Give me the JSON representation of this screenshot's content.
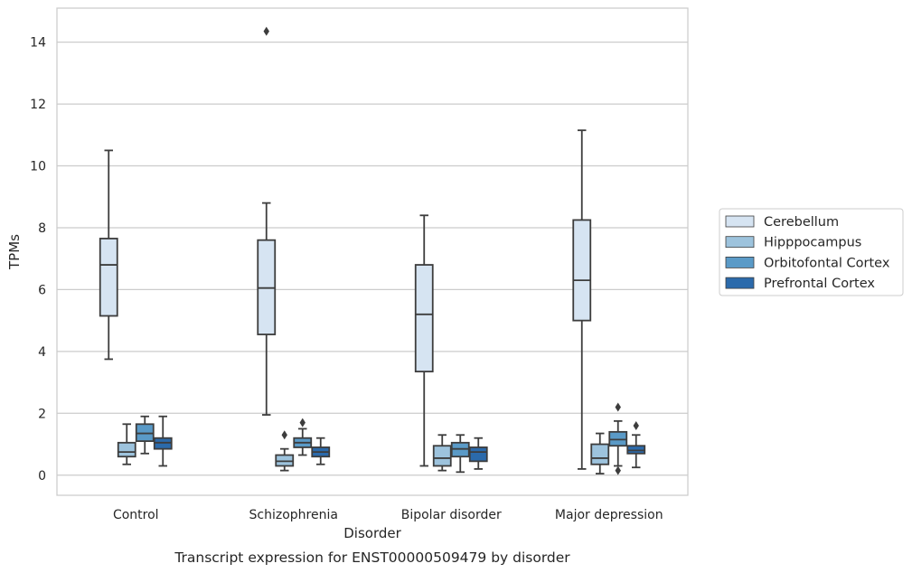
{
  "chart_data": {
    "type": "box",
    "title": "",
    "xlabel": "Disorder",
    "ylabel": "TPMs",
    "caption": "Transcript expression for ENST00000509479 by disorder",
    "categories": [
      "Control",
      "Schizophrenia",
      "Bipolar disorder",
      "Major depression"
    ],
    "yticks": [
      0,
      2,
      4,
      6,
      8,
      10,
      12,
      14
    ],
    "ylim": [
      -0.65,
      15.1
    ],
    "grid": true,
    "legend_position": "right",
    "series": [
      {
        "name": "Cerebellum",
        "color": "#d6e4f2",
        "boxes": [
          {
            "whislo": 3.75,
            "q1": 5.15,
            "med": 6.8,
            "q3": 7.65,
            "whishi": 10.5,
            "fliers": []
          },
          {
            "whislo": 1.95,
            "q1": 4.55,
            "med": 6.05,
            "q3": 7.6,
            "whishi": 8.8,
            "fliers": [
              14.35
            ]
          },
          {
            "whislo": 0.3,
            "q1": 3.35,
            "med": 5.2,
            "q3": 6.8,
            "whishi": 8.4,
            "fliers": []
          },
          {
            "whislo": 0.2,
            "q1": 5.0,
            "med": 6.3,
            "q3": 8.25,
            "whishi": 11.15,
            "fliers": []
          }
        ]
      },
      {
        "name": "Hipppocampus",
        "color": "#9dc3dd",
        "boxes": [
          {
            "whislo": 0.35,
            "q1": 0.6,
            "med": 0.75,
            "q3": 1.05,
            "whishi": 1.65,
            "fliers": []
          },
          {
            "whislo": 0.15,
            "q1": 0.3,
            "med": 0.45,
            "q3": 0.65,
            "whishi": 0.85,
            "fliers": [
              1.3
            ]
          },
          {
            "whislo": 0.15,
            "q1": 0.3,
            "med": 0.55,
            "q3": 0.95,
            "whishi": 1.3,
            "fliers": []
          },
          {
            "whislo": 0.05,
            "q1": 0.35,
            "med": 0.55,
            "q3": 1.0,
            "whishi": 1.35,
            "fliers": []
          }
        ]
      },
      {
        "name": "Orbitofontal Cortex",
        "color": "#5a9ac7",
        "boxes": [
          {
            "whislo": 0.7,
            "q1": 1.1,
            "med": 1.35,
            "q3": 1.65,
            "whishi": 1.9,
            "fliers": []
          },
          {
            "whislo": 0.65,
            "q1": 0.9,
            "med": 1.05,
            "q3": 1.2,
            "whishi": 1.5,
            "fliers": [
              1.7
            ]
          },
          {
            "whislo": 0.1,
            "q1": 0.6,
            "med": 0.85,
            "q3": 1.05,
            "whishi": 1.3,
            "fliers": []
          },
          {
            "whislo": 0.3,
            "q1": 0.95,
            "med": 1.15,
            "q3": 1.4,
            "whishi": 1.75,
            "fliers": [
              2.2,
              0.15
            ]
          }
        ]
      },
      {
        "name": "Prefrontal Cortex",
        "color": "#2b6aab",
        "boxes": [
          {
            "whislo": 0.3,
            "q1": 0.85,
            "med": 1.05,
            "q3": 1.2,
            "whishi": 1.9,
            "fliers": []
          },
          {
            "whislo": 0.35,
            "q1": 0.6,
            "med": 0.75,
            "q3": 0.9,
            "whishi": 1.2,
            "fliers": []
          },
          {
            "whislo": 0.2,
            "q1": 0.45,
            "med": 0.75,
            "q3": 0.9,
            "whishi": 1.2,
            "fliers": []
          },
          {
            "whislo": 0.25,
            "q1": 0.7,
            "med": 0.8,
            "q3": 0.95,
            "whishi": 1.3,
            "fliers": [
              1.6
            ]
          }
        ]
      }
    ]
  }
}
